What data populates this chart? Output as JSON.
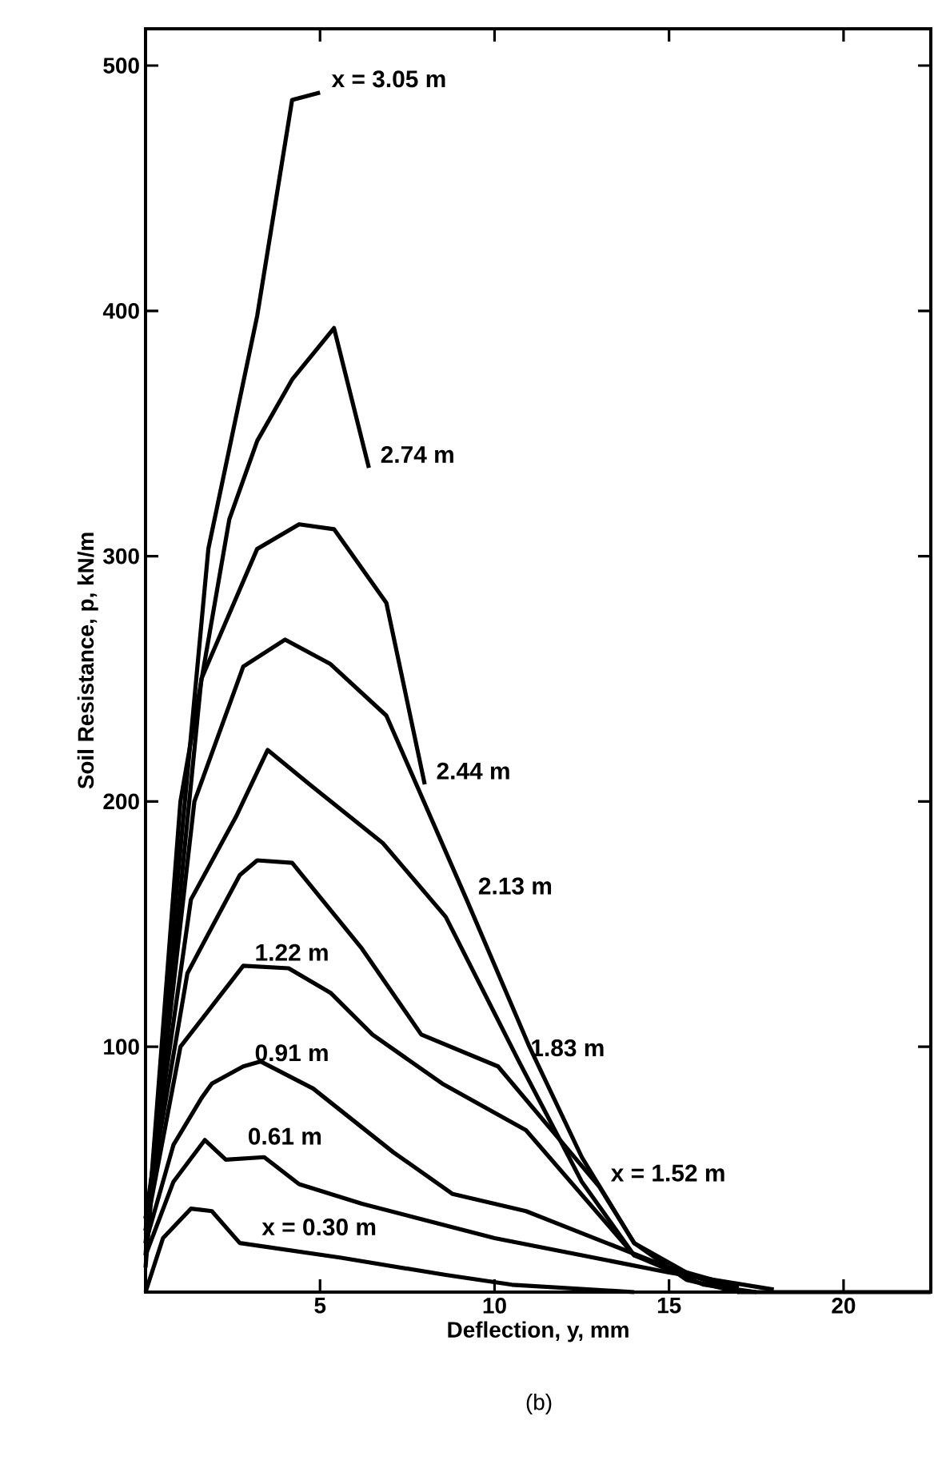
{
  "chart_data": {
    "type": "line",
    "xlabel": "Deflection, y, mm",
    "ylabel": "Soil Resistance, p, kN/m",
    "xlim": [
      0,
      22.5
    ],
    "ylim": [
      0,
      515
    ],
    "xticks": [
      5,
      10,
      15,
      20
    ],
    "yticks": [
      100,
      200,
      300,
      400,
      500
    ],
    "grid": false,
    "marker": "none",
    "line_style": "solid",
    "series": [
      {
        "color": "#000000",
        "x": [
          0,
          0.8,
          1.8,
          3.2,
          4.2,
          5.0
        ],
        "values": [
          10,
          150,
          303,
          398,
          486,
          489
        ]
      },
      {
        "color": "#000000",
        "x": [
          0,
          1.0,
          2.4,
          3.2,
          4.2,
          5.4,
          6.4
        ],
        "values": [
          15,
          200,
          315,
          347,
          372,
          393,
          336
        ]
      },
      {
        "color": "#000000",
        "x": [
          0,
          1.6,
          3.2,
          4.4,
          5.4,
          6.9,
          8.0
        ],
        "values": [
          20,
          250,
          303,
          313,
          311,
          281,
          207
        ]
      },
      {
        "color": "#000000",
        "x": [
          0,
          1.4,
          2.8,
          4.0,
          5.3,
          6.9,
          9.2,
          11,
          12.5,
          14,
          15.5,
          17,
          22.5
        ],
        "values": [
          25,
          200,
          255,
          266,
          256,
          235,
          160,
          100,
          55,
          20,
          5,
          0,
          0
        ]
      },
      {
        "color": "#000000",
        "x": [
          0,
          1.3,
          2.6,
          3.5,
          4.7,
          6.8,
          8.6,
          10.7,
          12.5,
          14,
          16,
          17.5
        ],
        "values": [
          30,
          160,
          194,
          221,
          207,
          183,
          153,
          94,
          45,
          15,
          3,
          0
        ]
      },
      {
        "color": "#000000",
        "x": [
          0,
          1.2,
          2.7,
          3.2,
          4.2,
          6.2,
          7.9,
          10.1,
          13.0,
          14,
          15.5,
          17
        ],
        "values": [
          30,
          130,
          170,
          176,
          175,
          140,
          105,
          92,
          43,
          20,
          8,
          0
        ]
      },
      {
        "color": "#000000",
        "x": [
          0,
          1.0,
          2.2,
          2.8,
          4.1,
          5.3,
          6.5,
          8.5,
          10.9,
          14,
          17
        ],
        "values": [
          25,
          100,
          122,
          133,
          132,
          122,
          105,
          85,
          66,
          15,
          0
        ]
      },
      {
        "color": "#000000",
        "x": [
          0,
          0.8,
          1.6,
          1.9,
          2.8,
          3.3,
          4.8,
          7.1,
          8.8,
          10.9,
          15,
          17
        ],
        "values": [
          20,
          60,
          79,
          85,
          92,
          94,
          83,
          57,
          40,
          33,
          10,
          2
        ]
      },
      {
        "color": "#000000",
        "x": [
          0,
          0.8,
          1.7,
          2.3,
          3.4,
          4.4,
          6.2,
          10,
          15,
          18
        ],
        "values": [
          15,
          45,
          62,
          54,
          55,
          44,
          36,
          22,
          8,
          1
        ]
      },
      {
        "color": "#000000",
        "x": [
          0,
          0.5,
          1.3,
          1.9,
          2.7,
          5.6,
          8.6,
          10.5,
          14
        ],
        "values": [
          0,
          22,
          34,
          33,
          20,
          14,
          7,
          3,
          0
        ]
      }
    ],
    "annotations": [
      {
        "text": "x = 3.05 m",
        "x": 5.0,
        "y": 489
      },
      {
        "text": "2.74 m",
        "x": 6.4,
        "y": 336
      },
      {
        "text": "2.44 m",
        "x": 8.0,
        "y": 207
      },
      {
        "text": "2.13 m",
        "x": 9.2,
        "y": 160
      },
      {
        "text": "1.83 m",
        "x": 10.7,
        "y": 94
      },
      {
        "text": "x = 1.52 m",
        "x": 13.0,
        "y": 43
      },
      {
        "text": "1.22 m",
        "x": 2.8,
        "y": 133
      },
      {
        "text": "0.91 m",
        "x": 2.8,
        "y": 92
      },
      {
        "text": "0.61 m",
        "x": 2.6,
        "y": 58
      },
      {
        "text": "x = 0.30 m",
        "x": 3.0,
        "y": 21
      },
      "(b)"
    ]
  }
}
